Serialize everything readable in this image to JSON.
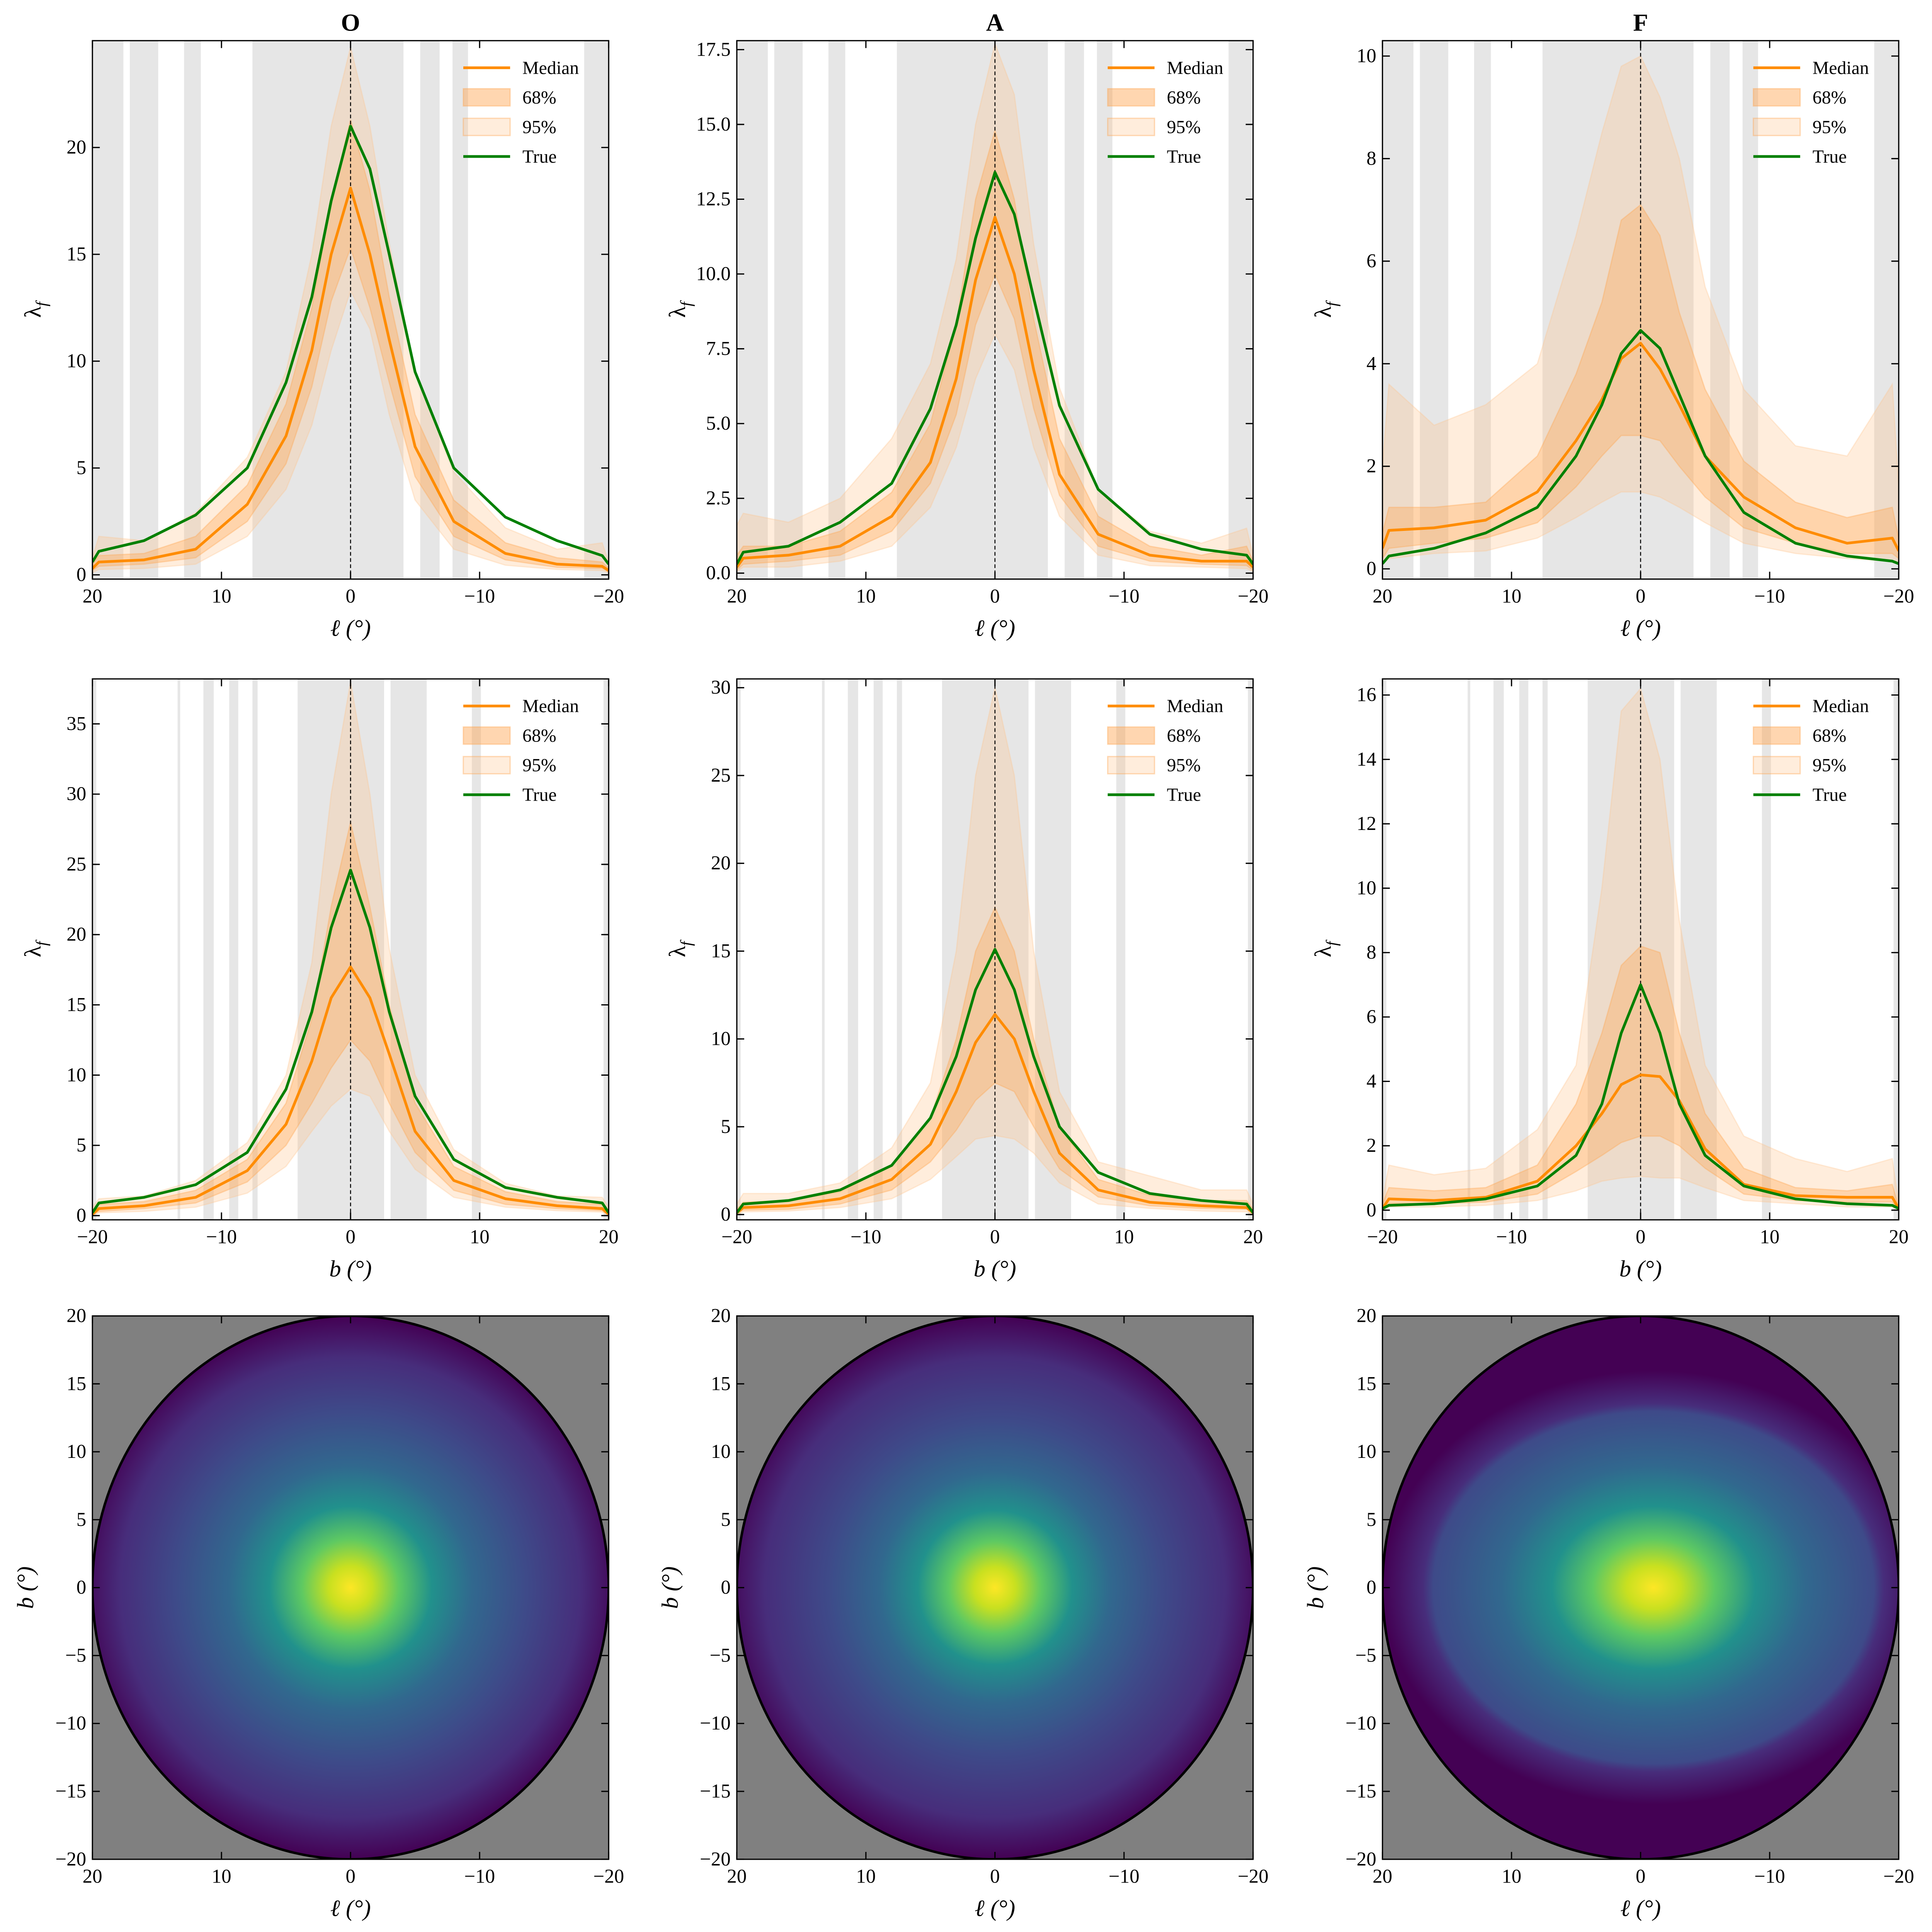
{
  "colors": {
    "median": "#ff8c00",
    "band68": "#ffa54f",
    "band95": "#ffc58a",
    "true": "#008000",
    "masked": "#e6e6e6",
    "map_background": "#808080"
  },
  "legend": {
    "labels": [
      "Median",
      "68%",
      "95%",
      "True"
    ],
    "placement": "top-right"
  },
  "chart_data": [
    {
      "type": "line",
      "title": "O",
      "xlabel": "ℓ (°)",
      "ylabel": {
        "symbol": "λ",
        "subscript": "f"
      },
      "xlim": [
        20,
        -20
      ],
      "ylim": [
        -0.2,
        25
      ],
      "xticks": [
        20,
        10,
        0,
        -10,
        -20
      ],
      "xticklabels": [
        "20",
        "10",
        "0",
        "−10",
        "−20"
      ],
      "yticks": [
        0,
        5,
        10,
        15,
        20
      ],
      "yticklabels": [
        "0",
        "5",
        "10",
        "15",
        "20"
      ],
      "masked_bands": [
        [
          20,
          17.6
        ],
        [
          17.1,
          14.9
        ],
        [
          12.9,
          11.6
        ],
        [
          7.6,
          -4.1
        ],
        [
          -5.4,
          -6.9
        ],
        [
          -7.9,
          -9.1
        ],
        [
          -18.1,
          -20
        ]
      ],
      "x": [
        20,
        19.5,
        16,
        12,
        8,
        5,
        3,
        1.5,
        0,
        -1.5,
        -3,
        -5,
        -8,
        -12,
        -16,
        -19.5,
        -20
      ],
      "median": [
        0.3,
        0.6,
        0.7,
        1.2,
        3.3,
        6.5,
        10.5,
        15,
        18.1,
        15,
        11,
        6,
        2.5,
        1,
        0.5,
        0.4,
        0.2
      ],
      "lo68": [
        0.2,
        0.4,
        0.5,
        0.8,
        2.5,
        5.2,
        8.8,
        12.8,
        15.3,
        12.5,
        9,
        4.6,
        1.8,
        0.7,
        0.35,
        0.3,
        0.15
      ],
      "hi68": [
        0.5,
        0.9,
        1,
        1.8,
        4.2,
        8,
        12.5,
        17.5,
        21.3,
        18,
        13,
        7.5,
        3.5,
        1.5,
        0.8,
        0.6,
        0.3
      ],
      "lo95": [
        0.1,
        0.25,
        0.3,
        0.5,
        1.8,
        4,
        7,
        10.5,
        13.3,
        11.5,
        7.5,
        3.5,
        1.2,
        0.45,
        0.25,
        0.2,
        0.1
      ],
      "hi95": [
        0.8,
        1.8,
        1.6,
        2.9,
        5.5,
        9.5,
        15,
        21,
        24.7,
        21,
        15.5,
        9.5,
        4.8,
        2.2,
        1.2,
        1.5,
        0.6
      ],
      "true": [
        0.6,
        1.1,
        1.6,
        2.8,
        5,
        9,
        13,
        17.5,
        21,
        19,
        15,
        9.5,
        5,
        2.7,
        1.6,
        0.9,
        0.5
      ]
    },
    {
      "type": "line",
      "title": "A",
      "xlabel": "ℓ (°)",
      "ylabel": {
        "symbol": "λ",
        "subscript": "f"
      },
      "xlim": [
        20,
        -20
      ],
      "ylim": [
        -0.2,
        17.8
      ],
      "xticks": [
        20,
        10,
        0,
        -10,
        -20
      ],
      "xticklabels": [
        "20",
        "10",
        "0",
        "−10",
        "−20"
      ],
      "yticks": [
        0,
        2.5,
        5,
        7.5,
        10,
        12.5,
        15,
        17.5
      ],
      "yticklabels": [
        "0.0",
        "2.5",
        "5.0",
        "7.5",
        "10.0",
        "12.5",
        "15.0",
        "17.5"
      ],
      "masked_bands": [
        [
          20,
          17.6
        ],
        [
          17.1,
          14.9
        ],
        [
          12.9,
          11.6
        ],
        [
          7.6,
          -4.1
        ],
        [
          -5.4,
          -6.9
        ],
        [
          -7.9,
          -9.1
        ],
        [
          -18.1,
          -20
        ]
      ],
      "x": [
        20,
        19.5,
        16,
        12,
        8,
        5,
        3,
        1.5,
        0,
        -1.5,
        -3,
        -5,
        -8,
        -12,
        -16,
        -19.5,
        -20
      ],
      "median": [
        0.2,
        0.5,
        0.6,
        0.9,
        1.9,
        3.7,
        6.5,
        9.8,
        11.9,
        10,
        6.8,
        3.3,
        1.3,
        0.6,
        0.4,
        0.4,
        0.2
      ],
      "lo68": [
        0.1,
        0.3,
        0.4,
        0.6,
        1.4,
        3,
        5.3,
        8.3,
        10,
        8.5,
        5.5,
        2.6,
        0.9,
        0.4,
        0.3,
        0.25,
        0.1
      ],
      "hi68": [
        0.6,
        0.9,
        0.9,
        1.4,
        2.7,
        5,
        8.3,
        12.5,
        14.8,
        12.5,
        8.5,
        4.5,
        1.9,
        0.9,
        0.6,
        0.9,
        0.4
      ],
      "lo95": [
        0.05,
        0.2,
        0.2,
        0.4,
        0.9,
        2.2,
        4.2,
        6.5,
        8,
        6.8,
        4.2,
        1.9,
        0.6,
        0.25,
        0.2,
        0.15,
        0.05
      ],
      "hi95": [
        1.6,
        2,
        1.7,
        2.5,
        4.5,
        7,
        10.5,
        15,
        17.7,
        16,
        11,
        6.2,
        2.8,
        1.4,
        1,
        1.5,
        0.6
      ],
      "true": [
        0.3,
        0.7,
        0.9,
        1.7,
        3,
        5.5,
        8.3,
        11.2,
        13.4,
        12,
        9.2,
        5.6,
        2.8,
        1.3,
        0.8,
        0.6,
        0.3
      ]
    },
    {
      "type": "line",
      "title": "F",
      "xlabel": "ℓ (°)",
      "ylabel": {
        "symbol": "λ",
        "subscript": "f"
      },
      "xlim": [
        20,
        -20
      ],
      "ylim": [
        -0.2,
        10.3
      ],
      "xticks": [
        20,
        10,
        0,
        -10,
        -20
      ],
      "xticklabels": [
        "20",
        "10",
        "0",
        "−10",
        "−20"
      ],
      "yticks": [
        0,
        2,
        4,
        6,
        8,
        10
      ],
      "yticklabels": [
        "0",
        "2",
        "4",
        "6",
        "8",
        "10"
      ],
      "masked_bands": [
        [
          20,
          17.6
        ],
        [
          17.1,
          14.9
        ],
        [
          12.9,
          11.6
        ],
        [
          7.6,
          -4.1
        ],
        [
          -5.4,
          -6.9
        ],
        [
          -7.9,
          -9.1
        ],
        [
          -18.1,
          -20
        ]
      ],
      "x": [
        20,
        19.5,
        16,
        12,
        8,
        5,
        3,
        1.5,
        0,
        -1.5,
        -3,
        -5,
        -8,
        -12,
        -16,
        -19.5,
        -20
      ],
      "median": [
        0.4,
        0.75,
        0.8,
        0.95,
        1.5,
        2.5,
        3.3,
        4.1,
        4.4,
        3.9,
        3.2,
        2.2,
        1.4,
        0.8,
        0.5,
        0.6,
        0.35
      ],
      "lo68": [
        0.2,
        0.4,
        0.5,
        0.6,
        0.9,
        1.6,
        2.2,
        2.6,
        2.6,
        2.5,
        2,
        1.4,
        0.8,
        0.5,
        0.3,
        0.3,
        0.2
      ],
      "hi68": [
        0.7,
        1.2,
        1.2,
        1.3,
        2.2,
        3.8,
        5.2,
        6.8,
        7.1,
        6.5,
        5,
        3.5,
        2.1,
        1.3,
        1,
        1.2,
        0.6
      ],
      "lo95": [
        0.1,
        0.2,
        0.3,
        0.35,
        0.6,
        1,
        1.3,
        1.5,
        1.5,
        1.4,
        1.2,
        0.9,
        0.5,
        0.3,
        0.2,
        0.15,
        0.1
      ],
      "hi95": [
        2,
        3.6,
        2.8,
        3.2,
        4,
        6.5,
        8.5,
        9.8,
        10,
        9.2,
        8,
        5.5,
        3.5,
        2.4,
        2.2,
        3.6,
        1.6
      ],
      "true": [
        0.1,
        0.25,
        0.4,
        0.7,
        1.2,
        2.2,
        3.2,
        4.2,
        4.65,
        4.3,
        3.4,
        2.2,
        1.1,
        0.5,
        0.25,
        0.15,
        0.1
      ]
    },
    {
      "type": "line",
      "xlabel": "b (°)",
      "ylabel": {
        "symbol": "λ",
        "subscript": "f"
      },
      "xlim": [
        -20,
        20
      ],
      "ylim": [
        -0.3,
        38.2
      ],
      "xticks": [
        -20,
        -10,
        0,
        10,
        20
      ],
      "xticklabels": [
        "−20",
        "−10",
        "0",
        "10",
        "20"
      ],
      "yticks": [
        0,
        5,
        10,
        15,
        20,
        25,
        30,
        35
      ],
      "yticklabels": [
        "0",
        "5",
        "10",
        "15",
        "20",
        "25",
        "30",
        "35"
      ],
      "masked_bands": [
        [
          -20,
          -19.7
        ],
        [
          -13.4,
          -13.2
        ],
        [
          -11.4,
          -10.6
        ],
        [
          -9.4,
          -8.7
        ],
        [
          -7.6,
          -7.2
        ],
        [
          -4.1,
          2.6
        ],
        [
          3.1,
          5.9
        ],
        [
          9.4,
          10.1
        ],
        [
          19.6,
          20
        ]
      ],
      "x": [
        -20,
        -19.5,
        -16,
        -12,
        -8,
        -5,
        -3,
        -1.5,
        0,
        1.5,
        3,
        5,
        8,
        12,
        16,
        19.5,
        20
      ],
      "median": [
        0.1,
        0.5,
        0.7,
        1.3,
        3.2,
        6.5,
        11,
        15.5,
        17.7,
        15.5,
        11.5,
        6,
        2.5,
        1.2,
        0.7,
        0.5,
        0.1
      ],
      "lo68": [
        0.05,
        0.3,
        0.5,
        0.9,
        2.4,
        5,
        8,
        10.5,
        12.5,
        11,
        8,
        4.5,
        1.8,
        0.8,
        0.5,
        0.35,
        0.05
      ],
      "hi68": [
        0.3,
        0.8,
        1,
        1.8,
        4,
        8,
        14,
        22,
        28,
        22,
        15,
        8,
        3.5,
        1.7,
        1,
        0.8,
        0.3
      ],
      "lo95": [
        0,
        0.2,
        0.3,
        0.6,
        1.6,
        3.5,
        6,
        7.8,
        9,
        8.5,
        6,
        3.3,
        1.3,
        0.6,
        0.35,
        0.25,
        0
      ],
      "hi95": [
        0.6,
        1.2,
        1.4,
        2.5,
        5.2,
        10,
        18,
        30,
        38,
        30,
        19,
        10,
        4.7,
        2.3,
        1.4,
        1.3,
        0.6
      ],
      "true": [
        0.2,
        0.9,
        1.3,
        2.2,
        4.5,
        9,
        14.5,
        20.5,
        24.6,
        20.5,
        14.5,
        8.5,
        4,
        2,
        1.3,
        0.9,
        0.2
      ]
    },
    {
      "type": "line",
      "xlabel": "b (°)",
      "ylabel": {
        "symbol": "λ",
        "subscript": "f"
      },
      "xlim": [
        -20,
        20
      ],
      "ylim": [
        -0.3,
        30.5
      ],
      "xticks": [
        -20,
        -10,
        0,
        10,
        20
      ],
      "xticklabels": [
        "−20",
        "−10",
        "0",
        "10",
        "20"
      ],
      "yticks": [
        0,
        5,
        10,
        15,
        20,
        25,
        30
      ],
      "yticklabels": [
        "0",
        "5",
        "10",
        "15",
        "20",
        "25",
        "30"
      ],
      "masked_bands": [
        [
          -20,
          -19.7
        ],
        [
          -13.4,
          -13.2
        ],
        [
          -11.4,
          -10.6
        ],
        [
          -9.4,
          -8.7
        ],
        [
          -7.6,
          -7.2
        ],
        [
          -4.1,
          2.6
        ],
        [
          3.1,
          5.9
        ],
        [
          9.4,
          10.1
        ],
        [
          19.6,
          20
        ]
      ],
      "x": [
        -20,
        -19.5,
        -16,
        -12,
        -8,
        -5,
        -3,
        -1.5,
        0,
        1.5,
        3,
        5,
        8,
        12,
        16,
        19.5,
        20
      ],
      "median": [
        0.1,
        0.4,
        0.5,
        0.9,
        2,
        4,
        7,
        9.8,
        11.4,
        10,
        7,
        3.5,
        1.4,
        0.7,
        0.5,
        0.4,
        0.1
      ],
      "lo68": [
        0.05,
        0.25,
        0.3,
        0.6,
        1.4,
        3,
        4.8,
        6.5,
        7.5,
        7,
        5,
        2.6,
        1,
        0.5,
        0.35,
        0.3,
        0.05
      ],
      "hi68": [
        0.3,
        0.7,
        0.8,
        1.3,
        2.8,
        5.5,
        10,
        15,
        17.5,
        15,
        10,
        5,
        2,
        1.1,
        0.8,
        0.8,
        0.3
      ],
      "lo95": [
        0,
        0.15,
        0.2,
        0.4,
        0.9,
        2,
        3.3,
        4.3,
        4.5,
        4.3,
        3.5,
        1.8,
        0.6,
        0.35,
        0.2,
        0.15,
        0
      ],
      "hi95": [
        0.6,
        1.2,
        1.2,
        1.8,
        3.8,
        7.5,
        15,
        25,
        30,
        25,
        15,
        7,
        3,
        2.2,
        1.4,
        1.4,
        0.6
      ],
      "true": [
        0.1,
        0.6,
        0.8,
        1.4,
        2.8,
        5.5,
        9,
        12.8,
        15.1,
        12.8,
        9,
        5,
        2.4,
        1.2,
        0.8,
        0.6,
        0.1
      ]
    },
    {
      "type": "line",
      "xlabel": "b (°)",
      "ylabel": {
        "symbol": "λ",
        "subscript": "f"
      },
      "xlim": [
        -20,
        20
      ],
      "ylim": [
        -0.3,
        16.5
      ],
      "xticks": [
        -20,
        -10,
        0,
        10,
        20
      ],
      "xticklabels": [
        "−20",
        "−10",
        "0",
        "10",
        "20"
      ],
      "yticks": [
        0,
        2,
        4,
        6,
        8,
        10,
        12,
        14,
        16
      ],
      "yticklabels": [
        "0",
        "2",
        "4",
        "6",
        "8",
        "10",
        "12",
        "14",
        "16"
      ],
      "masked_bands": [
        [
          -20,
          -19.7
        ],
        [
          -13.4,
          -13.2
        ],
        [
          -11.4,
          -10.6
        ],
        [
          -9.4,
          -8.7
        ],
        [
          -7.6,
          -7.2
        ],
        [
          -4.1,
          2.6
        ],
        [
          3.1,
          5.9
        ],
        [
          9.4,
          10.1
        ],
        [
          19.6,
          20
        ]
      ],
      "x": [
        -20,
        -19.5,
        -16,
        -12,
        -8,
        -5,
        -3,
        -1.5,
        0,
        1.5,
        3,
        5,
        8,
        12,
        16,
        19.5,
        20
      ],
      "median": [
        0.05,
        0.35,
        0.3,
        0.4,
        0.9,
        2,
        3,
        3.9,
        4.2,
        4.15,
        3.4,
        1.9,
        0.8,
        0.45,
        0.4,
        0.4,
        0.05
      ],
      "lo68": [
        0,
        0.2,
        0.2,
        0.25,
        0.5,
        1.2,
        1.7,
        2.1,
        2.3,
        2.3,
        2,
        1.3,
        0.5,
        0.3,
        0.25,
        0.25,
        0
      ],
      "hi68": [
        0.2,
        0.7,
        0.6,
        0.7,
        1.4,
        3.3,
        5.5,
        7.6,
        8.2,
        8,
        5.5,
        3,
        1.3,
        0.7,
        0.6,
        0.8,
        0.1
      ],
      "lo95": [
        0,
        0.1,
        0.1,
        0.15,
        0.3,
        0.6,
        0.9,
        1,
        1.05,
        1,
        1,
        0.7,
        0.3,
        0.2,
        0.1,
        0.1,
        0
      ],
      "hi95": [
        0.3,
        1.4,
        1.1,
        1.3,
        2.5,
        4.5,
        10,
        15.5,
        16.2,
        14,
        9,
        4.5,
        2.3,
        1.6,
        1.2,
        1.6,
        0.2
      ],
      "true": [
        0.05,
        0.15,
        0.2,
        0.35,
        0.75,
        1.7,
        3.3,
        5.5,
        7,
        5.5,
        3.3,
        1.7,
        0.75,
        0.35,
        0.2,
        0.15,
        0.05
      ]
    },
    {
      "type": "heatmap",
      "colormap": "viridis",
      "xlabel": "ℓ (°)",
      "ylabel": "b (°)",
      "xlim": [
        20,
        -20
      ],
      "ylim": [
        -20,
        20
      ],
      "xticks": [
        20,
        10,
        0,
        -10,
        -20
      ],
      "xticklabels": [
        "20",
        "10",
        "0",
        "−10",
        "−20"
      ],
      "yticks": [
        20,
        15,
        10,
        5,
        0,
        -5,
        -10,
        -15,
        -20
      ],
      "yticklabels": [
        "20",
        "15",
        "10",
        "5",
        "0",
        "−5",
        "−10",
        "−15",
        "−20"
      ],
      "region_radius": 20,
      "peak": [
        0,
        0
      ],
      "spread": 1.0
    },
    {
      "type": "heatmap",
      "colormap": "viridis",
      "xlabel": "ℓ (°)",
      "ylabel": "b (°)",
      "xlim": [
        20,
        -20
      ],
      "ylim": [
        -20,
        20
      ],
      "xticks": [
        20,
        10,
        0,
        -10,
        -20
      ],
      "xticklabels": [
        "20",
        "10",
        "0",
        "−10",
        "−20"
      ],
      "yticks": [
        20,
        15,
        10,
        5,
        0,
        -5,
        -10,
        -15,
        -20
      ],
      "yticklabels": [
        "20",
        "15",
        "10",
        "5",
        "0",
        "−5",
        "−10",
        "−15",
        "−20"
      ],
      "region_radius": 20,
      "peak": [
        0,
        0
      ],
      "spread": 0.95
    },
    {
      "type": "heatmap",
      "colormap": "viridis",
      "xlabel": "ℓ (°)",
      "ylabel": "b (°)",
      "xlim": [
        20,
        -20
      ],
      "ylim": [
        -20,
        20
      ],
      "xticks": [
        20,
        10,
        0,
        -10,
        -20
      ],
      "xticklabels": [
        "20",
        "10",
        "0",
        "−10",
        "−20"
      ],
      "yticks": [
        20,
        15,
        10,
        5,
        0,
        -5,
        -10,
        -15,
        -20
      ],
      "yticklabels": [
        "20",
        "15",
        "10",
        "5",
        "0",
        "−5",
        "−10",
        "−15",
        "−20"
      ],
      "region_radius": 20,
      "peak": [
        -1,
        0
      ],
      "spread": 1.25
    }
  ]
}
